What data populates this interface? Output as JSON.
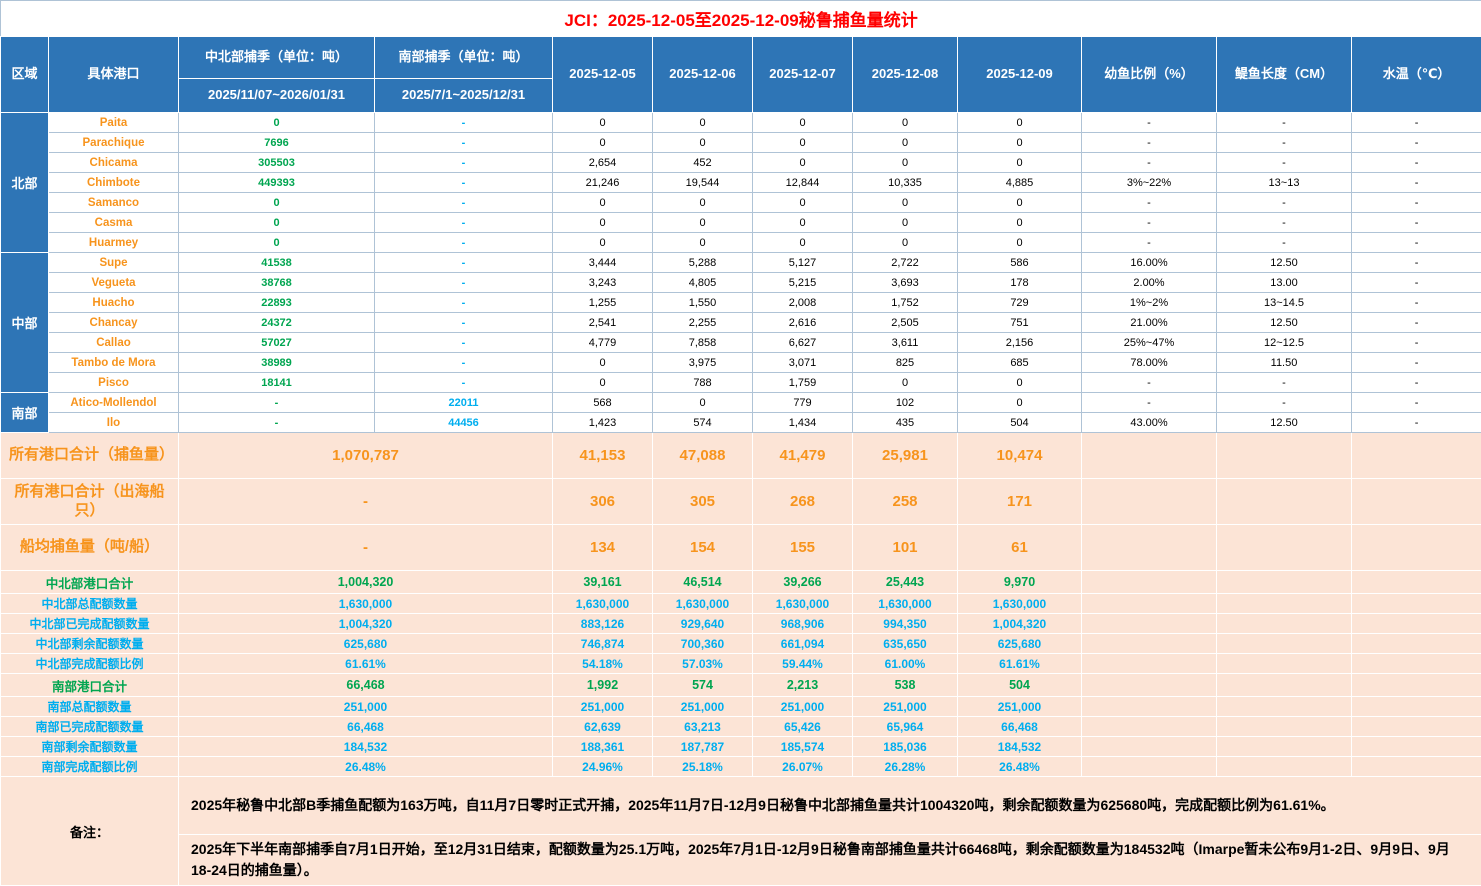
{
  "title": "JCI：2025-12-05至2025-12-09秘鲁捕鱼量统计",
  "colors": {
    "header_blue": "#2E75B6",
    "title_red": "#FF0000",
    "port_orange": "#F7941D",
    "quota_green": "#00A550",
    "quota_blue": "#00AEEF",
    "summary_peach": "#FCE4D6"
  },
  "header": {
    "region": "区域",
    "port": "具体港口",
    "nc_season": "中北部捕季（单位：吨）",
    "nc_season_range": "2025/11/07~2026/01/31",
    "s_season": "南部捕季（单位：吨）",
    "s_season_range": "2025/7/1~2025/12/31",
    "dates": [
      "2025-12-05",
      "2025-12-06",
      "2025-12-07",
      "2025-12-08",
      "2025-12-09"
    ],
    "juvenile": "幼鱼比例（%）",
    "length": "鳀鱼长度（CM）",
    "temp": "水温（℃）"
  },
  "regions": [
    {
      "name": "北部",
      "ports": [
        {
          "name": "Paita",
          "nc": "0",
          "s": "-",
          "days": [
            "0",
            "0",
            "0",
            "0",
            "0"
          ],
          "juvenile": "-",
          "length": "-",
          "temp": "-"
        },
        {
          "name": "Parachique",
          "nc": "7696",
          "s": "-",
          "days": [
            "0",
            "0",
            "0",
            "0",
            "0"
          ],
          "juvenile": "-",
          "length": "-",
          "temp": "-"
        },
        {
          "name": "Chicama",
          "nc": "305503",
          "s": "-",
          "days": [
            "2,654",
            "452",
            "0",
            "0",
            "0"
          ],
          "juvenile": "-",
          "length": "-",
          "temp": "-"
        },
        {
          "name": "Chimbote",
          "nc": "449393",
          "s": "-",
          "days": [
            "21,246",
            "19,544",
            "12,844",
            "10,335",
            "4,885"
          ],
          "juvenile": "3%~22%",
          "length": "13~13",
          "temp": "-"
        },
        {
          "name": "Samanco",
          "nc": "0",
          "s": "-",
          "days": [
            "0",
            "0",
            "0",
            "0",
            "0"
          ],
          "juvenile": "-",
          "length": "-",
          "temp": "-"
        },
        {
          "name": "Casma",
          "nc": "0",
          "s": "-",
          "days": [
            "0",
            "0",
            "0",
            "0",
            "0"
          ],
          "juvenile": "-",
          "length": "-",
          "temp": "-"
        },
        {
          "name": "Huarmey",
          "nc": "0",
          "s": "-",
          "days": [
            "0",
            "0",
            "0",
            "0",
            "0"
          ],
          "juvenile": "-",
          "length": "-",
          "temp": "-"
        }
      ]
    },
    {
      "name": "中部",
      "ports": [
        {
          "name": "Supe",
          "nc": "41538",
          "s": "-",
          "days": [
            "3,444",
            "5,288",
            "5,127",
            "2,722",
            "586"
          ],
          "juvenile": "16.00%",
          "length": "12.50",
          "temp": "-"
        },
        {
          "name": "Vegueta",
          "nc": "38768",
          "s": "-",
          "days": [
            "3,243",
            "4,805",
            "5,215",
            "3,693",
            "178"
          ],
          "juvenile": "2.00%",
          "length": "13.00",
          "temp": "-"
        },
        {
          "name": "Huacho",
          "nc": "22893",
          "s": "-",
          "days": [
            "1,255",
            "1,550",
            "2,008",
            "1,752",
            "729"
          ],
          "juvenile": "1%~2%",
          "length": "13~14.5",
          "temp": "-"
        },
        {
          "name": "Chancay",
          "nc": "24372",
          "s": "-",
          "days": [
            "2,541",
            "2,255",
            "2,616",
            "2,505",
            "751"
          ],
          "juvenile": "21.00%",
          "length": "12.50",
          "temp": "-"
        },
        {
          "name": "Callao",
          "nc": "57027",
          "s": "-",
          "days": [
            "4,779",
            "7,858",
            "6,627",
            "3,611",
            "2,156"
          ],
          "juvenile": "25%~47%",
          "length": "12~12.5",
          "temp": "-"
        },
        {
          "name": "Tambo de Mora",
          "nc": "38989",
          "s": "-",
          "days": [
            "0",
            "3,975",
            "3,071",
            "825",
            "685"
          ],
          "juvenile": "78.00%",
          "length": "11.50",
          "temp": "-"
        },
        {
          "name": "Pisco",
          "nc": "18141",
          "s": "-",
          "days": [
            "0",
            "788",
            "1,759",
            "0",
            "0"
          ],
          "juvenile": "-",
          "length": "-",
          "temp": "-"
        }
      ]
    },
    {
      "name": "南部",
      "ports": [
        {
          "name": "Atico-Mollendol",
          "nc": "-",
          "s": "22011",
          "days": [
            "568",
            "0",
            "779",
            "102",
            "0"
          ],
          "juvenile": "-",
          "length": "-",
          "temp": "-"
        },
        {
          "name": "Ilo",
          "nc": "-",
          "s": "44456",
          "days": [
            "1,423",
            "574",
            "1,434",
            "435",
            "504"
          ],
          "juvenile": "43.00%",
          "length": "12.50",
          "temp": "-"
        }
      ]
    }
  ],
  "summary_rows": [
    {
      "label": "所有港口合计（捕鱼量）",
      "total": "1,070,787",
      "days": [
        "41,153",
        "47,088",
        "41,479",
        "25,981",
        "10,474"
      ]
    },
    {
      "label": "所有港口合计（出海船只）",
      "total": "-",
      "days": [
        "306",
        "305",
        "268",
        "258",
        "171"
      ]
    },
    {
      "label": "船均捕鱼量（吨/船）",
      "total": "-",
      "days": [
        "134",
        "154",
        "155",
        "101",
        "61"
      ]
    }
  ],
  "quota_rows": [
    {
      "label": "中北部港口合计",
      "total": "1,004,320",
      "days": [
        "39,161",
        "46,514",
        "39,266",
        "25,443",
        "9,970"
      ],
      "color": "green",
      "emphasis": true
    },
    {
      "label": "中北部总配额数量",
      "total": "1,630,000",
      "days": [
        "1,630,000",
        "1,630,000",
        "1,630,000",
        "1,630,000",
        "1,630,000"
      ],
      "color": "blue",
      "emphasis": false
    },
    {
      "label": "中北部已完成配额数量",
      "total": "1,004,320",
      "days": [
        "883,126",
        "929,640",
        "968,906",
        "994,350",
        "1,004,320"
      ],
      "color": "blue",
      "emphasis": false
    },
    {
      "label": "中北部剩余配额数量",
      "total": "625,680",
      "days": [
        "746,874",
        "700,360",
        "661,094",
        "635,650",
        "625,680"
      ],
      "color": "blue",
      "emphasis": false
    },
    {
      "label": "中北部完成配额比例",
      "total": "61.61%",
      "days": [
        "54.18%",
        "57.03%",
        "59.44%",
        "61.00%",
        "61.61%"
      ],
      "color": "blue",
      "emphasis": false
    },
    {
      "label": "南部港口合计",
      "total": "66,468",
      "days": [
        "1,992",
        "574",
        "2,213",
        "538",
        "504"
      ],
      "color": "green",
      "emphasis": true
    },
    {
      "label": "南部总配额数量",
      "total": "251,000",
      "days": [
        "251,000",
        "251,000",
        "251,000",
        "251,000",
        "251,000"
      ],
      "color": "blue",
      "emphasis": false
    },
    {
      "label": "南部已完成配额数量",
      "total": "66,468",
      "days": [
        "62,639",
        "63,213",
        "65,426",
        "65,964",
        "66,468"
      ],
      "color": "blue",
      "emphasis": false
    },
    {
      "label": "南部剩余配额数量",
      "total": "184,532",
      "days": [
        "188,361",
        "187,787",
        "185,574",
        "185,036",
        "184,532"
      ],
      "color": "blue",
      "emphasis": false
    },
    {
      "label": "南部完成配额比例",
      "total": "26.48%",
      "days": [
        "24.96%",
        "25.18%",
        "26.07%",
        "26.28%",
        "26.48%"
      ],
      "color": "blue",
      "emphasis": false
    }
  ],
  "notes": {
    "label": "备注：",
    "note1": "2025年秘鲁中北部B季捕鱼配额为163万吨，自11月7日零时正式开捕，2025年11月7日-12月9日秘鲁中北部捕鱼量共计1004320吨，剩余配额数量为625680吨，完成配额比例为61.61%。",
    "note2": "2025年下半年南部捕季自7月1日开始，至12月31日结束，配额数量为25.1万吨，2025年7月1日-12月9日秘鲁南部捕鱼量共计66468吨，剩余配额数量为184532吨（Imarpe暂未公布9月1-2日、9月9日、9月18-24日的捕鱼量）。"
  }
}
